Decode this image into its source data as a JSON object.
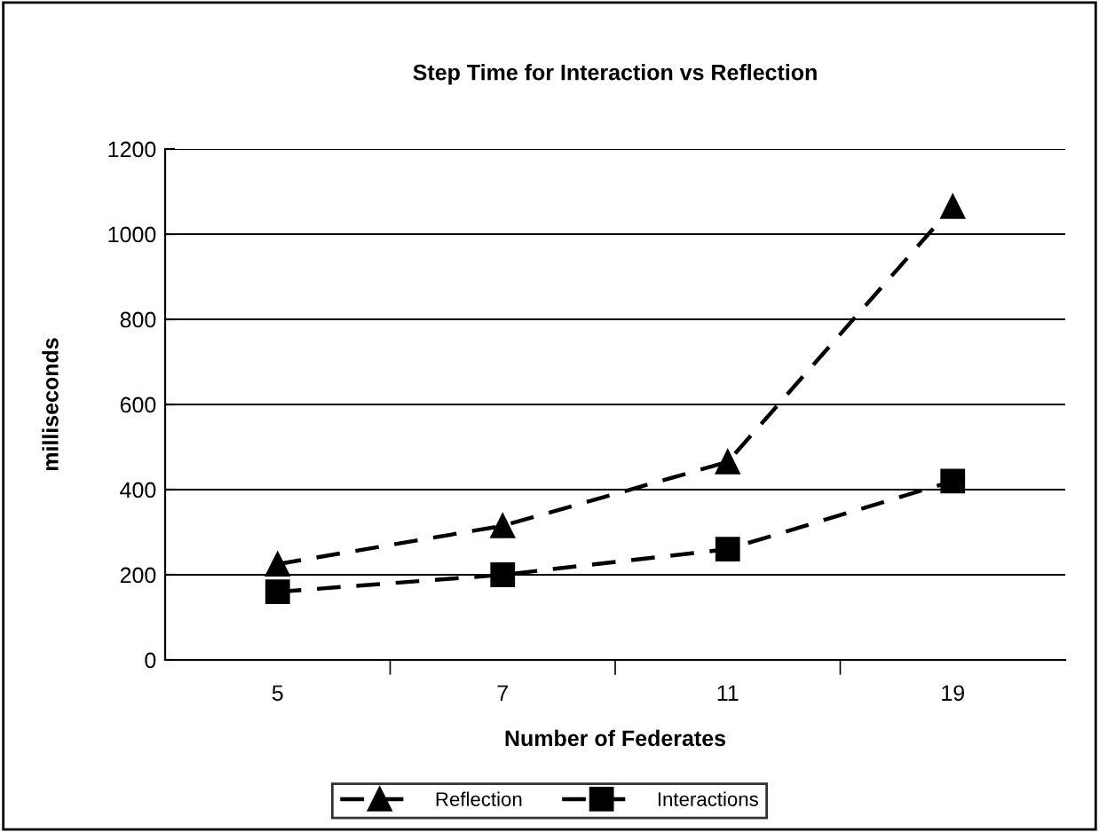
{
  "chart_data": {
    "type": "line",
    "title": "Step Time for Interaction vs Reflection",
    "xlabel": "Number of Federates",
    "ylabel": "milliseconds",
    "categories": [
      "5",
      "7",
      "11",
      "19"
    ],
    "series": [
      {
        "name": "Reflection",
        "color": "#000000",
        "marker": "triangle",
        "values": [
          225,
          315,
          465,
          1065
        ]
      },
      {
        "name": "Interactions",
        "color": "#000000",
        "marker": "square",
        "values": [
          160,
          200,
          260,
          420
        ]
      }
    ],
    "ylim": [
      0,
      1200
    ],
    "yticks": [
      0,
      200,
      400,
      600,
      800,
      1000,
      1200
    ],
    "grid": "y",
    "legend": "bottom",
    "line_style": "dashed"
  }
}
